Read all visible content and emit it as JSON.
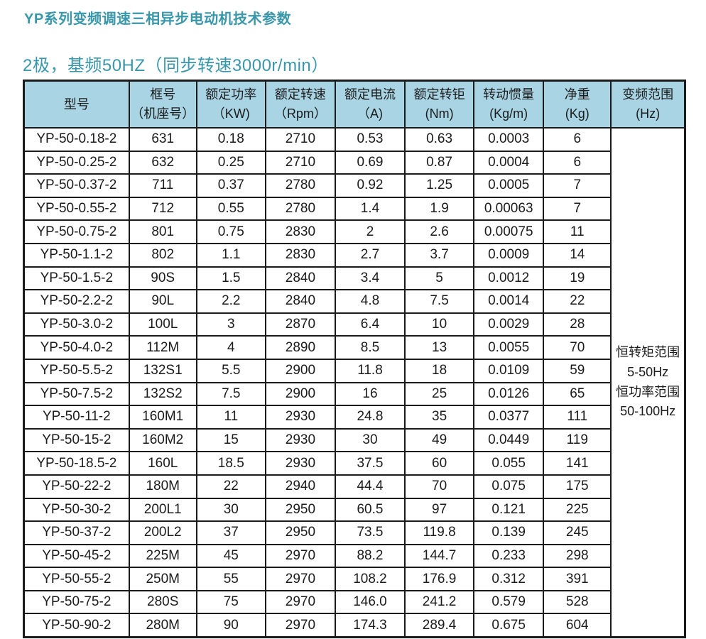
{
  "title": "YP系列变频调速三相异步电动机技术参数",
  "subtitle": "2极，基频50HZ（同步转速3000r/min）",
  "colors": {
    "title_teal": "#3997ab",
    "header_bg": "#a8d4e4",
    "border": "#1b1b1b"
  },
  "table": {
    "headers": [
      [
        "型号"
      ],
      [
        "框号",
        "（机座号）"
      ],
      [
        "额定功率",
        "（KW)"
      ],
      [
        "额定转速",
        "（Rpm）"
      ],
      [
        "额定电流",
        "（A)"
      ],
      [
        "额定转钜",
        "(Nm)"
      ],
      [
        "转动惯量",
        "(Kg/m)"
      ],
      [
        "净重",
        "(Kg)"
      ],
      [
        "变频范围",
        "(Hz)"
      ]
    ],
    "rows": [
      [
        "YP-50-0.18-2",
        "631",
        "0.18",
        "2710",
        "0.53",
        "0.63",
        "0.0003",
        "6"
      ],
      [
        "YP-50-0.25-2",
        "632",
        "0.25",
        "2710",
        "0.69",
        "0.87",
        "0.0004",
        "6"
      ],
      [
        "YP-50-0.37-2",
        "711",
        "0.37",
        "2780",
        "0.92",
        "1.25",
        "0.0005",
        "7"
      ],
      [
        "YP-50-0.55-2",
        "712",
        "0.55",
        "2780",
        "1.4",
        "1.9",
        "0.00063",
        "7"
      ],
      [
        "YP-50-0.75-2",
        "801",
        "0.75",
        "2830",
        "2",
        "2.6",
        "0.00075",
        "11"
      ],
      [
        "YP-50-1.1-2",
        "802",
        "1.1",
        "2830",
        "2.7",
        "3.7",
        "0.0009",
        "14"
      ],
      [
        "YP-50-1.5-2",
        "90S",
        "1.5",
        "2840",
        "3.4",
        "5",
        "0.0012",
        "19"
      ],
      [
        "YP-50-2.2-2",
        "90L",
        "2.2",
        "2840",
        "4.8",
        "7.5",
        "0.0014",
        "22"
      ],
      [
        "YP-50-3.0-2",
        "100L",
        "3",
        "2870",
        "6.4",
        "10",
        "0.0029",
        "28"
      ],
      [
        "YP-50-4.0-2",
        "112M",
        "4",
        "2890",
        "8.5",
        "13",
        "0.0055",
        "70"
      ],
      [
        "YP-50-5.5-2",
        "132S1",
        "5.5",
        "2900",
        "11.8",
        "18",
        "0.0109",
        "59"
      ],
      [
        "YP-50-7.5-2",
        "132S2",
        "7.5",
        "2900",
        "16",
        "25",
        "0.0126",
        "65"
      ],
      [
        "YP-50-11-2",
        "160M1",
        "11",
        "2930",
        "24.8",
        "35",
        "0.0377",
        "111"
      ],
      [
        "YP-50-15-2",
        "160M2",
        "15",
        "2930",
        "30",
        "49",
        "0.0449",
        "119"
      ],
      [
        "YP-50-18.5-2",
        "160L",
        "18.5",
        "2930",
        "37.5",
        "60",
        "0.055",
        "141"
      ],
      [
        "YP-50-22-2",
        "180M",
        "22",
        "2940",
        "44.4",
        "70",
        "0.075",
        "175"
      ],
      [
        "YP-50-30-2",
        "200L1",
        "30",
        "2950",
        "60.5",
        "97",
        "0.121",
        "225"
      ],
      [
        "YP-50-37-2",
        "200L2",
        "37",
        "2950",
        "73.5",
        "119.8",
        "0.139",
        "245"
      ],
      [
        "YP-50-45-2",
        "225M",
        "45",
        "2970",
        "88.2",
        "144.7",
        "0.233",
        "298"
      ],
      [
        "YP-50-55-2",
        "250M",
        "55",
        "2970",
        "108.2",
        "176.9",
        "0.312",
        "391"
      ],
      [
        "YP-50-75-2",
        "280S",
        "75",
        "2970",
        "146.0",
        "241.2",
        "0.579",
        "528"
      ],
      [
        "YP-50-90-2",
        "280M",
        "90",
        "2970",
        "174.3",
        "289.4",
        "0.675",
        "604"
      ]
    ],
    "freq_range_lines": [
      "恒转矩范围",
      "5-50Hz",
      "恒功率范围",
      "50-100Hz"
    ]
  }
}
